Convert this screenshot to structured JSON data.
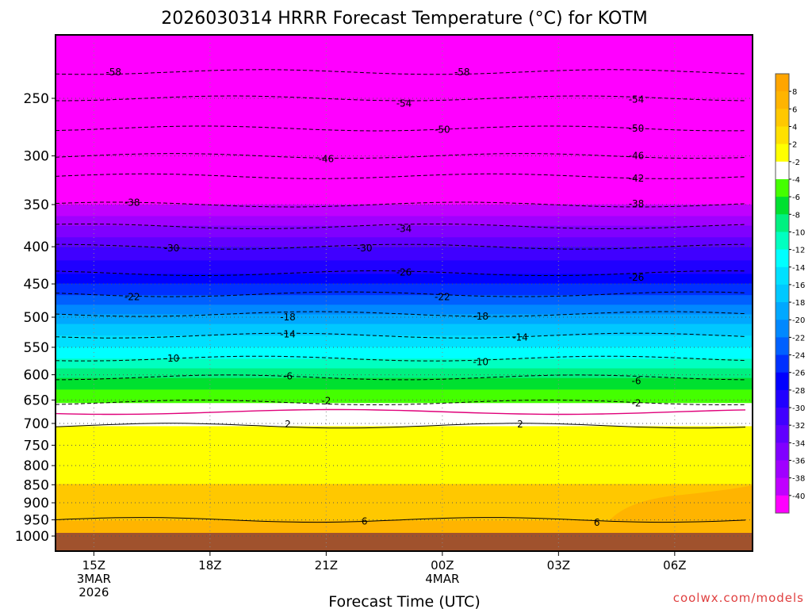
{
  "chart_data": {
    "type": "heatmap",
    "title": "2026030314 HRRR Forecast Temperature (°C) for KOTM",
    "xlabel": "Forecast Time (UTC)",
    "ylabel": "",
    "y_ticks": [
      250,
      300,
      350,
      400,
      450,
      500,
      550,
      600,
      650,
      700,
      750,
      800,
      850,
      900,
      950,
      1000
    ],
    "y_tick_labels": [
      "250",
      "300",
      "350",
      "400",
      "450",
      "500",
      "550",
      "600",
      "650",
      "700",
      "750",
      "800",
      "850",
      "900",
      "950",
      "1000"
    ],
    "ylim": [
      200,
      1000
    ],
    "x_range_hours": [
      -0.33,
      5.67
    ],
    "x_ticks": [
      {
        "hour": 0,
        "lines": [
          "15Z",
          "3MAR",
          "2026"
        ]
      },
      {
        "hour": 1,
        "lines": [
          "18Z"
        ]
      },
      {
        "hour": 2,
        "lines": [
          "21Z"
        ]
      },
      {
        "hour": 3,
        "lines": [
          "00Z",
          "4MAR"
        ]
      },
      {
        "hour": 4,
        "lines": [
          "03Z"
        ]
      },
      {
        "hour": 5,
        "lines": [
          "06Z"
        ]
      }
    ],
    "colorbar": {
      "labels": [
        "8",
        "6",
        "4",
        "2",
        "-2",
        "-4",
        "-6",
        "-8",
        "-10",
        "-12",
        "-14",
        "-16",
        "-18",
        "-20",
        "-22",
        "-24",
        "-26",
        "-28",
        "-30",
        "-32",
        "-34",
        "-36",
        "-38",
        "-40"
      ],
      "colors": [
        "#ffa500",
        "#ffb400",
        "#ffc800",
        "#ffe000",
        "#ffff00",
        "#ffffff",
        "#44ff00",
        "#00e030",
        "#00f080",
        "#00ffc0",
        "#00ffff",
        "#00e0ff",
        "#00c8ff",
        "#00a8ff",
        "#0088ff",
        "#0060ff",
        "#0030ff",
        "#0000ff",
        "#2000ff",
        "#4000ff",
        "#6000ff",
        "#8000ff",
        "#a000ff",
        "#c000ff",
        "#ff00ff"
      ]
    },
    "temperature_profile": [
      {
        "p": 200,
        "t": -60
      },
      {
        "p": 230,
        "t": -58
      },
      {
        "p": 250,
        "t": -54
      },
      {
        "p": 275,
        "t": -50
      },
      {
        "p": 300,
        "t": -46
      },
      {
        "p": 320,
        "t": -42
      },
      {
        "p": 350,
        "t": -38
      },
      {
        "p": 375,
        "t": -34
      },
      {
        "p": 400,
        "t": -30
      },
      {
        "p": 435,
        "t": -26
      },
      {
        "p": 465,
        "t": -22
      },
      {
        "p": 495,
        "t": -18
      },
      {
        "p": 530,
        "t": -14
      },
      {
        "p": 570,
        "t": -10
      },
      {
        "p": 605,
        "t": -6
      },
      {
        "p": 655,
        "t": -2
      },
      {
        "p": 675,
        "t": 0
      },
      {
        "p": 705,
        "t": 2
      },
      {
        "p": 760,
        "t": 3
      },
      {
        "p": 850,
        "t": 4
      },
      {
        "p": 950,
        "t": 6
      },
      {
        "p": 985,
        "t": 7
      }
    ],
    "contour_labels": [
      {
        "text": "-58",
        "hour": 0.17,
        "p": 230
      },
      {
        "text": "-58",
        "hour": 3.17,
        "p": 230
      },
      {
        "text": "-54",
        "hour": 2.67,
        "p": 254
      },
      {
        "text": "-54",
        "hour": 4.67,
        "p": 251
      },
      {
        "text": "-50",
        "hour": 3.0,
        "p": 276
      },
      {
        "text": "-50",
        "hour": 4.67,
        "p": 275
      },
      {
        "text": "-46",
        "hour": 2.0,
        "p": 303
      },
      {
        "text": "-46",
        "hour": 4.67,
        "p": 300
      },
      {
        "text": "-42",
        "hour": 4.67,
        "p": 322
      },
      {
        "text": "-38",
        "hour": 0.33,
        "p": 348
      },
      {
        "text": "-38",
        "hour": 4.67,
        "p": 349
      },
      {
        "text": "-34",
        "hour": 2.67,
        "p": 378
      },
      {
        "text": "-30",
        "hour": 0.67,
        "p": 402
      },
      {
        "text": "-30",
        "hour": 2.33,
        "p": 402
      },
      {
        "text": "-26",
        "hour": 2.67,
        "p": 434
      },
      {
        "text": "-26",
        "hour": 4.67,
        "p": 441
      },
      {
        "text": "-22",
        "hour": 0.33,
        "p": 469
      },
      {
        "text": "-22",
        "hour": 3.0,
        "p": 469
      },
      {
        "text": "-18",
        "hour": 1.67,
        "p": 500
      },
      {
        "text": "-18",
        "hour": 3.33,
        "p": 499
      },
      {
        "text": "-14",
        "hour": 1.67,
        "p": 528
      },
      {
        "text": "-14",
        "hour": 3.67,
        "p": 533
      },
      {
        "text": "-10",
        "hour": 0.67,
        "p": 570
      },
      {
        "text": "-10",
        "hour": 3.33,
        "p": 576
      },
      {
        "text": "-6",
        "hour": 1.67,
        "p": 603
      },
      {
        "text": "-6",
        "hour": 4.67,
        "p": 612
      },
      {
        "text": "-2",
        "hour": 2.0,
        "p": 652
      },
      {
        "text": "-2",
        "hour": 4.67,
        "p": 657
      },
      {
        "text": "2",
        "hour": 1.67,
        "p": 702
      },
      {
        "text": "2",
        "hour": 3.67,
        "p": 702
      },
      {
        "text": "6",
        "hour": 2.33,
        "p": 955
      },
      {
        "text": "6",
        "hour": 4.33,
        "p": 958
      }
    ]
  },
  "credit": "coolwx.com/models"
}
